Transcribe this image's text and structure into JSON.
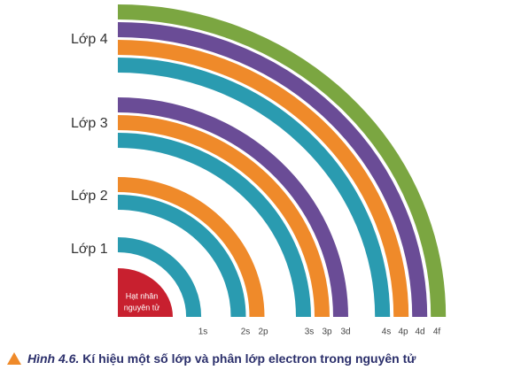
{
  "layers": [
    "Lớp 4",
    "Lớp 3",
    "Lớp 2",
    "Lớp 1"
  ],
  "nucleus": [
    "Hạt nhân",
    "nguyên tử"
  ],
  "subshells": [
    "1s",
    "2s",
    "2p",
    "3s",
    "3p",
    "3d",
    "4s",
    "4p",
    "4d",
    "4f"
  ],
  "caption": {
    "figure": "Hình 4.6.",
    "text": "Kí hiệu một số lớp và phân lớp electron trong nguyên tử"
  }
}
